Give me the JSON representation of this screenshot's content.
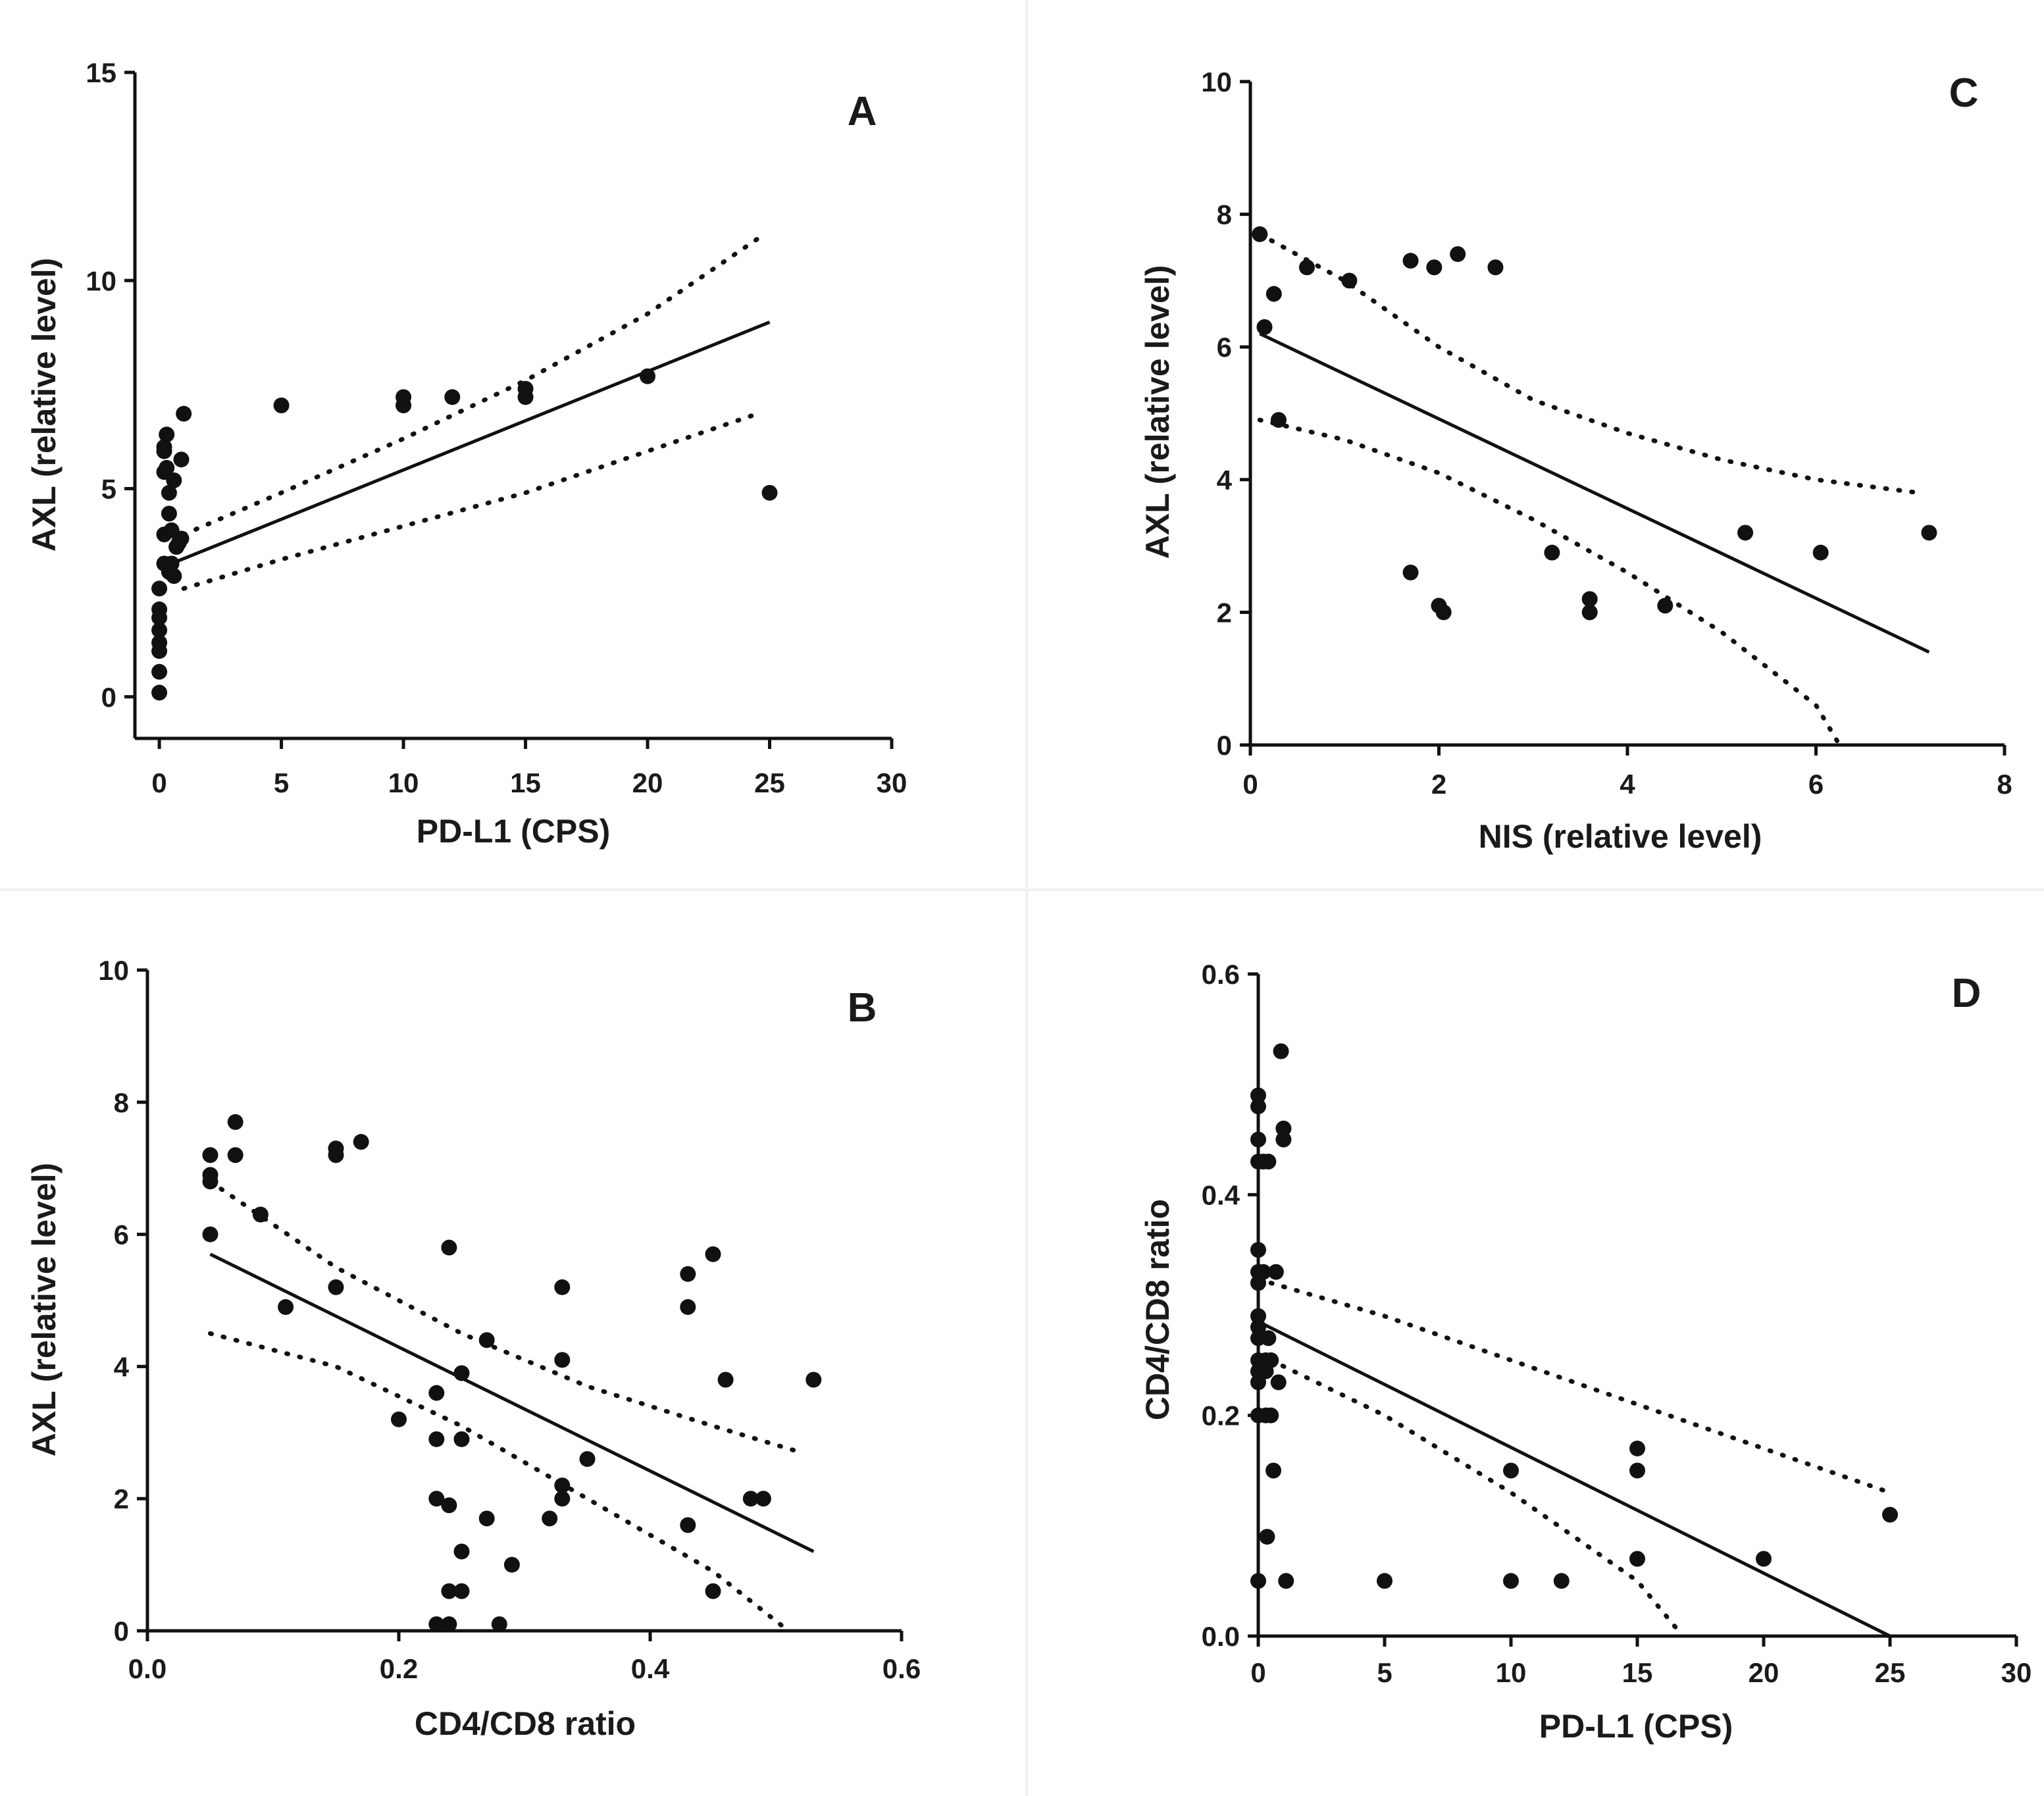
{
  "figure": {
    "background": "#ffffff",
    "ink": "#111111",
    "divider_color": "#f0f0f0"
  },
  "chart_data": [
    {
      "panel": "A",
      "type": "scatter",
      "xlabel": "PD-L1 (CPS)",
      "ylabel": "AXL (relative level)",
      "xlim": [
        -1,
        30
      ],
      "ylim": [
        -1,
        15
      ],
      "xticks": [
        0,
        5,
        10,
        15,
        20,
        25,
        30
      ],
      "yticks": [
        0,
        5,
        10,
        15
      ],
      "xtick_labels": [
        "0",
        "5",
        "10",
        "15",
        "20",
        "25",
        "30"
      ],
      "ytick_labels": [
        "0",
        "5",
        "10",
        "15"
      ],
      "points": [
        [
          0,
          0.1
        ],
        [
          0,
          0.6
        ],
        [
          0,
          1.1
        ],
        [
          0,
          1.3
        ],
        [
          0,
          1.6
        ],
        [
          0,
          1.9
        ],
        [
          0,
          2.1
        ],
        [
          0,
          2.6
        ],
        [
          0.2,
          3.2
        ],
        [
          0.2,
          3.9
        ],
        [
          0.2,
          5.4
        ],
        [
          0.2,
          5.9
        ],
        [
          0.2,
          6.0
        ],
        [
          0.3,
          6.3
        ],
        [
          0.3,
          5.5
        ],
        [
          0.4,
          4.9
        ],
        [
          0.4,
          4.4
        ],
        [
          0.4,
          3.0
        ],
        [
          0.5,
          4.0
        ],
        [
          0.5,
          3.2
        ],
        [
          0.6,
          5.2
        ],
        [
          0.6,
          2.9
        ],
        [
          0.7,
          3.6
        ],
        [
          0.8,
          3.7
        ],
        [
          0.9,
          3.8
        ],
        [
          0.9,
          5.7
        ],
        [
          1.0,
          6.8
        ],
        [
          5,
          7.0
        ],
        [
          10,
          7.0
        ],
        [
          10,
          7.2
        ],
        [
          12,
          7.2
        ],
        [
          15,
          7.2
        ],
        [
          15,
          7.4
        ],
        [
          20,
          7.7
        ],
        [
          25,
          4.9
        ]
      ],
      "fit": {
        "x": [
          0.5,
          25
        ],
        "y": [
          3.2,
          9.0
        ]
      },
      "ci_upper": {
        "x": [
          1,
          5,
          10,
          15,
          20,
          24.5
        ],
        "y": [
          3.9,
          4.9,
          6.2,
          7.6,
          9.2,
          11.0
        ]
      },
      "ci_lower": {
        "x": [
          1,
          5,
          10,
          15,
          20,
          24.5
        ],
        "y": [
          2.6,
          3.3,
          4.1,
          4.9,
          5.9,
          6.8
        ]
      }
    },
    {
      "panel": "B",
      "type": "scatter",
      "xlabel": "CD4/CD8 ratio",
      "ylabel": "AXL (relative level)",
      "xlim": [
        0,
        0.6
      ],
      "ylim": [
        0,
        10
      ],
      "xticks": [
        0,
        0.2,
        0.4,
        0.6
      ],
      "yticks": [
        0,
        2,
        4,
        6,
        8,
        10
      ],
      "xtick_labels": [
        "0.0",
        "0.2",
        "0.4",
        "0.6"
      ],
      "ytick_labels": [
        "0",
        "2",
        "4",
        "6",
        "8",
        "10"
      ],
      "points": [
        [
          0.05,
          7.2
        ],
        [
          0.05,
          6.9
        ],
        [
          0.05,
          6.8
        ],
        [
          0.05,
          6.0
        ],
        [
          0.07,
          7.7
        ],
        [
          0.07,
          7.2
        ],
        [
          0.09,
          6.3
        ],
        [
          0.11,
          4.9
        ],
        [
          0.15,
          7.3
        ],
        [
          0.15,
          7.2
        ],
        [
          0.15,
          5.2
        ],
        [
          0.17,
          7.4
        ],
        [
          0.2,
          3.2
        ],
        [
          0.23,
          3.6
        ],
        [
          0.23,
          2.9
        ],
        [
          0.23,
          2.0
        ],
        [
          0.23,
          0.1
        ],
        [
          0.24,
          5.8
        ],
        [
          0.24,
          1.9
        ],
        [
          0.24,
          0.6
        ],
        [
          0.24,
          0.1
        ],
        [
          0.25,
          3.9
        ],
        [
          0.25,
          2.9
        ],
        [
          0.25,
          1.2
        ],
        [
          0.25,
          0.6
        ],
        [
          0.27,
          4.4
        ],
        [
          0.27,
          1.7
        ],
        [
          0.28,
          0.1
        ],
        [
          0.29,
          1.0
        ],
        [
          0.32,
          1.7
        ],
        [
          0.33,
          5.2
        ],
        [
          0.33,
          4.1
        ],
        [
          0.33,
          2.2
        ],
        [
          0.33,
          2.0
        ],
        [
          0.35,
          2.6
        ],
        [
          0.43,
          5.4
        ],
        [
          0.43,
          4.9
        ],
        [
          0.43,
          1.6
        ],
        [
          0.45,
          5.7
        ],
        [
          0.45,
          0.6
        ],
        [
          0.46,
          3.8
        ],
        [
          0.48,
          2.0
        ],
        [
          0.49,
          2.0
        ],
        [
          0.53,
          3.8
        ]
      ],
      "fit": {
        "x": [
          0.05,
          0.53
        ],
        "y": [
          5.7,
          1.2
        ]
      },
      "ci_upper": {
        "x": [
          0.05,
          0.15,
          0.25,
          0.35,
          0.45,
          0.52
        ],
        "y": [
          6.8,
          5.5,
          4.5,
          3.7,
          3.1,
          2.7
        ]
      },
      "ci_lower": {
        "x": [
          0.05,
          0.15,
          0.25,
          0.35,
          0.45,
          0.51
        ],
        "y": [
          4.5,
          4.0,
          3.1,
          2.0,
          0.9,
          0.0
        ]
      }
    },
    {
      "panel": "C",
      "type": "scatter",
      "xlabel": "NIS (relative level)",
      "ylabel": "AXL (relative level)",
      "xlim": [
        0,
        8
      ],
      "ylim": [
        0,
        10
      ],
      "xticks": [
        0,
        2,
        4,
        6,
        8
      ],
      "yticks": [
        0,
        2,
        4,
        6,
        8,
        10
      ],
      "xtick_labels": [
        "0",
        "2",
        "4",
        "6",
        "8"
      ],
      "ytick_labels": [
        "0",
        "2",
        "4",
        "6",
        "8",
        "10"
      ],
      "points": [
        [
          0.1,
          7.7
        ],
        [
          0.15,
          6.3
        ],
        [
          0.25,
          6.8
        ],
        [
          0.3,
          4.9
        ],
        [
          0.6,
          7.2
        ],
        [
          1.05,
          7.0
        ],
        [
          1.7,
          7.3
        ],
        [
          1.7,
          2.6
        ],
        [
          1.95,
          7.2
        ],
        [
          2.0,
          2.1
        ],
        [
          2.05,
          2.0
        ],
        [
          2.2,
          7.4
        ],
        [
          2.6,
          7.2
        ],
        [
          3.2,
          2.9
        ],
        [
          3.6,
          2.2
        ],
        [
          3.6,
          2.0
        ],
        [
          4.4,
          2.1
        ],
        [
          5.25,
          3.2
        ],
        [
          6.05,
          2.9
        ],
        [
          7.2,
          3.2
        ]
      ],
      "fit": {
        "x": [
          0.1,
          7.2
        ],
        "y": [
          6.2,
          1.4
        ]
      },
      "ci_upper": {
        "x": [
          0.1,
          1,
          2,
          3,
          4,
          5,
          6,
          7.1
        ],
        "y": [
          7.7,
          7.0,
          6.0,
          5.2,
          4.7,
          4.3,
          4.0,
          3.8
        ]
      },
      "ci_lower": {
        "x": [
          0.1,
          1,
          2,
          3,
          4,
          5,
          6,
          6.25
        ],
        "y": [
          4.9,
          4.6,
          4.1,
          3.4,
          2.6,
          1.7,
          0.6,
          0.0
        ]
      }
    },
    {
      "panel": "D",
      "type": "scatter",
      "xlabel": "PD-L1 (CPS)",
      "ylabel": "CD4/CD8 ratio",
      "xlim": [
        0,
        30
      ],
      "ylim": [
        0,
        0.6
      ],
      "xticks": [
        0,
        5,
        10,
        15,
        20,
        25,
        30
      ],
      "yticks": [
        0,
        0.2,
        0.4,
        0.6
      ],
      "xtick_labels": [
        "0",
        "5",
        "10",
        "15",
        "20",
        "25",
        "30"
      ],
      "ytick_labels": [
        "0.0",
        "0.2",
        "0.4",
        "0.6"
      ],
      "points": [
        [
          0,
          0.49
        ],
        [
          0,
          0.48
        ],
        [
          0,
          0.45
        ],
        [
          0,
          0.43
        ],
        [
          0,
          0.35
        ],
        [
          0,
          0.33
        ],
        [
          0,
          0.32
        ],
        [
          0,
          0.29
        ],
        [
          0,
          0.28
        ],
        [
          0,
          0.27
        ],
        [
          0,
          0.25
        ],
        [
          0,
          0.24
        ],
        [
          0,
          0.23
        ],
        [
          0,
          0.2
        ],
        [
          0,
          0.05
        ],
        [
          0.2,
          0.43
        ],
        [
          0.2,
          0.33
        ],
        [
          0.3,
          0.25
        ],
        [
          0.3,
          0.24
        ],
        [
          0.3,
          0.2
        ],
        [
          0.35,
          0.09
        ],
        [
          0.4,
          0.43
        ],
        [
          0.4,
          0.27
        ],
        [
          0.5,
          0.25
        ],
        [
          0.5,
          0.2
        ],
        [
          0.6,
          0.15
        ],
        [
          0.7,
          0.33
        ],
        [
          0.8,
          0.23
        ],
        [
          0.9,
          0.53
        ],
        [
          1.0,
          0.46
        ],
        [
          1.0,
          0.45
        ],
        [
          1.1,
          0.05
        ],
        [
          5,
          0.05
        ],
        [
          10,
          0.15
        ],
        [
          10,
          0.05
        ],
        [
          12,
          0.05
        ],
        [
          15,
          0.17
        ],
        [
          15,
          0.15
        ],
        [
          15,
          0.07
        ],
        [
          20,
          0.07
        ],
        [
          25,
          0.11
        ]
      ],
      "fit": {
        "x": [
          0,
          25
        ],
        "y": [
          0.285,
          0.0
        ]
      },
      "ci_upper": {
        "x": [
          0.5,
          5,
          10,
          15,
          20,
          25
        ],
        "y": [
          0.32,
          0.29,
          0.25,
          0.21,
          0.17,
          0.13
        ]
      },
      "ci_lower": {
        "x": [
          0.5,
          5,
          10,
          15,
          16.8
        ],
        "y": [
          0.25,
          0.2,
          0.13,
          0.05,
          0.0
        ]
      }
    }
  ]
}
